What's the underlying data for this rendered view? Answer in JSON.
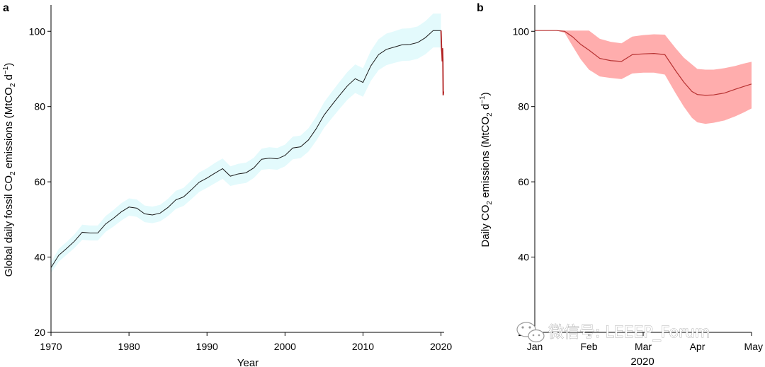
{
  "chart_data": [
    {
      "panel_label": "a",
      "type": "line",
      "xlabel": "Year",
      "ylabel_parts": [
        "Global daily fossil CO",
        "2",
        " emissions (MtCO",
        "2",
        " d",
        "−1",
        ")"
      ],
      "xlim": [
        1970,
        2020.4
      ],
      "ylim": [
        20,
        107
      ],
      "xticks": [
        1970,
        1980,
        1990,
        2000,
        2010,
        2020
      ],
      "yticks": [
        20,
        40,
        60,
        80,
        100
      ],
      "colors": {
        "line": "#1a1a1a",
        "band": "#e3fafc",
        "recent": "#b22222"
      },
      "series": [
        {
          "x": [
            1970,
            1971,
            1972,
            1973,
            1974,
            1975,
            1976,
            1977,
            1978,
            1979,
            1980,
            1981,
            1982,
            1983,
            1984,
            1985,
            1986,
            1987,
            1988,
            1989,
            1990,
            1991,
            1992,
            1993,
            1994,
            1995,
            1996,
            1997,
            1998,
            1999,
            2000,
            2001,
            2002,
            2003,
            2004,
            2005,
            2006,
            2007,
            2008,
            2009,
            2010,
            2011,
            2012,
            2013,
            2014,
            2015,
            2016,
            2017,
            2018,
            2019,
            2020
          ],
          "y": [
            37.2,
            40.5,
            42.3,
            44.2,
            46.6,
            46.4,
            46.4,
            48.8,
            50.3,
            52.0,
            53.3,
            53.0,
            51.5,
            51.2,
            51.7,
            53.2,
            55.2,
            56.0,
            57.9,
            59.9,
            61.0,
            62.3,
            63.5,
            61.5,
            62.1,
            62.4,
            63.7,
            66.0,
            66.3,
            66.1,
            67.0,
            69.0,
            69.3,
            71.1,
            74.1,
            77.7,
            80.4,
            83.0,
            85.5,
            87.4,
            86.4,
            90.8,
            93.8,
            95.2,
            95.8,
            96.4,
            96.5,
            97.0,
            98.3,
            100.2,
            100.2
          ],
          "lower": [
            35.8,
            38.8,
            40.6,
            42.4,
            44.6,
            44.4,
            44.4,
            46.7,
            48.1,
            49.7,
            51.0,
            50.7,
            49.3,
            49.0,
            49.5,
            50.9,
            52.8,
            53.6,
            55.4,
            57.3,
            58.4,
            59.6,
            60.8,
            58.9,
            59.4,
            59.7,
            61.0,
            63.2,
            63.4,
            63.2,
            64.1,
            66.0,
            66.3,
            68.0,
            70.9,
            74.3,
            76.9,
            79.4,
            81.8,
            83.6,
            82.6,
            86.8,
            89.7,
            91.0,
            91.6,
            92.1,
            92.2,
            92.7,
            93.9,
            95.7,
            95.7
          ],
          "upper": [
            38.6,
            42.2,
            44.0,
            46.0,
            48.6,
            48.4,
            48.4,
            50.9,
            52.5,
            54.3,
            55.6,
            55.3,
            53.7,
            53.4,
            53.9,
            55.5,
            57.6,
            58.4,
            60.4,
            62.5,
            63.6,
            65.0,
            66.2,
            64.1,
            64.8,
            65.1,
            66.4,
            68.8,
            69.2,
            69.0,
            69.9,
            72.0,
            72.3,
            74.2,
            77.3,
            81.1,
            83.9,
            86.6,
            89.2,
            91.2,
            90.2,
            94.8,
            97.9,
            99.4,
            100.0,
            100.7,
            100.8,
            101.3,
            102.7,
            104.7,
            104.7
          ]
        }
      ],
      "recent_drop": {
        "x": [
          2020.0,
          2020.08,
          2020.12,
          2020.16,
          2020.2,
          2020.24,
          2020.28,
          2020.32
        ],
        "y": [
          100.2,
          95.0,
          94.2,
          92.0,
          95.5,
          92.5,
          83.0,
          84.0
        ]
      }
    },
    {
      "panel_label": "b",
      "type": "line",
      "xlabel": "2020",
      "ylabel_parts": [
        "Daily CO",
        "2",
        " emissions (MtCO",
        "2",
        " d",
        "−1",
        ")"
      ],
      "xlim": [
        0,
        4
      ],
      "ylim": [
        20,
        107
      ],
      "categories": [
        "Jan",
        "Feb",
        "Mar",
        "Apr",
        "May"
      ],
      "yticks": [
        20,
        40,
        60,
        80,
        100
      ],
      "colors": {
        "line": "#b83232",
        "band": "#ffadad"
      },
      "series": [
        {
          "x": [
            0,
            0.2,
            0.4,
            0.55,
            0.7,
            0.85,
            1.0,
            1.2,
            1.4,
            1.6,
            1.8,
            2.0,
            2.2,
            2.4,
            2.6,
            2.75,
            2.9,
            3.0,
            3.15,
            3.3,
            3.5,
            3.7,
            3.85,
            4.0
          ],
          "y": [
            100.2,
            100.2,
            100.2,
            100.0,
            98.5,
            96.5,
            95.0,
            92.8,
            92.2,
            92.0,
            93.8,
            94.0,
            94.1,
            93.8,
            89.5,
            86.5,
            84.0,
            83.2,
            83.0,
            83.1,
            83.6,
            84.6,
            85.3,
            86.0
          ],
          "lower": [
            100.2,
            100.2,
            100.2,
            99.6,
            96.0,
            92.5,
            89.8,
            88.0,
            87.6,
            87.3,
            88.8,
            89.0,
            89.0,
            88.5,
            83.5,
            80.0,
            77.0,
            75.8,
            75.4,
            75.7,
            76.3,
            77.4,
            78.4,
            79.5
          ],
          "upper": [
            100.2,
            100.2,
            100.2,
            100.2,
            100.2,
            100.2,
            100.2,
            98.0,
            97.2,
            96.8,
            98.6,
            99.0,
            99.2,
            99.1,
            95.5,
            93.0,
            91.2,
            90.0,
            89.8,
            89.8,
            90.2,
            90.8,
            91.4,
            91.9
          ]
        }
      ]
    }
  ],
  "watermark": {
    "icon": "wechat-bubble-icon",
    "text": "微信号: LEEEP_Forum"
  }
}
